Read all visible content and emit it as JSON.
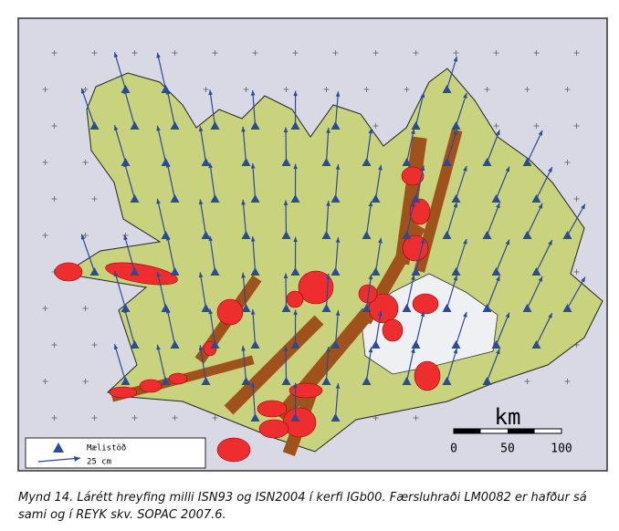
{
  "legend": {
    "station": "Mælistöð",
    "arrow": "25 cm"
  },
  "scale_bar": {
    "unit": "km",
    "ticks": [
      0,
      50,
      100
    ]
  },
  "caption": "Mynd 14. Lárétt hreyfing milli ISN93 og ISN2004 í kerfi  IGb00. Færsluhraði LM0082 er hafður sá sami og í REYK skv. SOPAC 2007.6."
}
